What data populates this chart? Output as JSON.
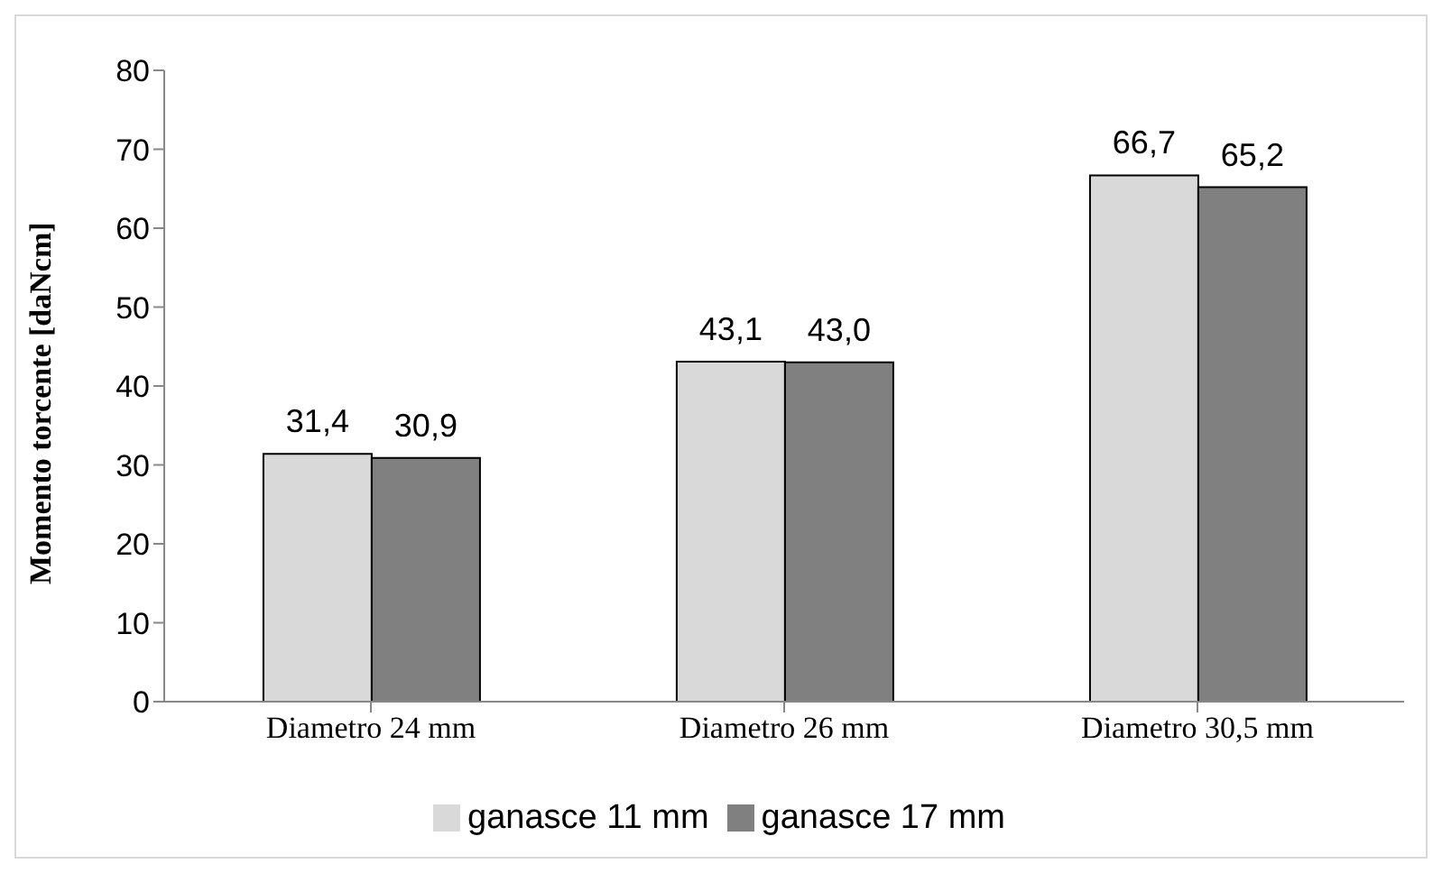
{
  "chart_data": {
    "type": "bar",
    "ylabel": "Momento torcente [daNcm]",
    "categories": [
      "Diametro 24 mm",
      "Diametro 26 mm",
      "Diametro 30,5 mm"
    ],
    "series": [
      {
        "name": "ganasce 11 mm",
        "color": "#d9d9d9",
        "values": [
          31.4,
          43.1,
          66.7
        ],
        "value_labels": [
          "31,4",
          "43,1",
          "66,7"
        ]
      },
      {
        "name": "ganasce 17 mm",
        "color": "#808080",
        "values": [
          30.9,
          43.0,
          65.2
        ],
        "value_labels": [
          "30,9",
          "43,0",
          "65,2"
        ]
      }
    ],
    "ylim": [
      0,
      80
    ],
    "yticks": [
      0,
      10,
      20,
      30,
      40,
      50,
      60,
      70,
      80
    ],
    "grid": false,
    "legend": "bottom"
  }
}
